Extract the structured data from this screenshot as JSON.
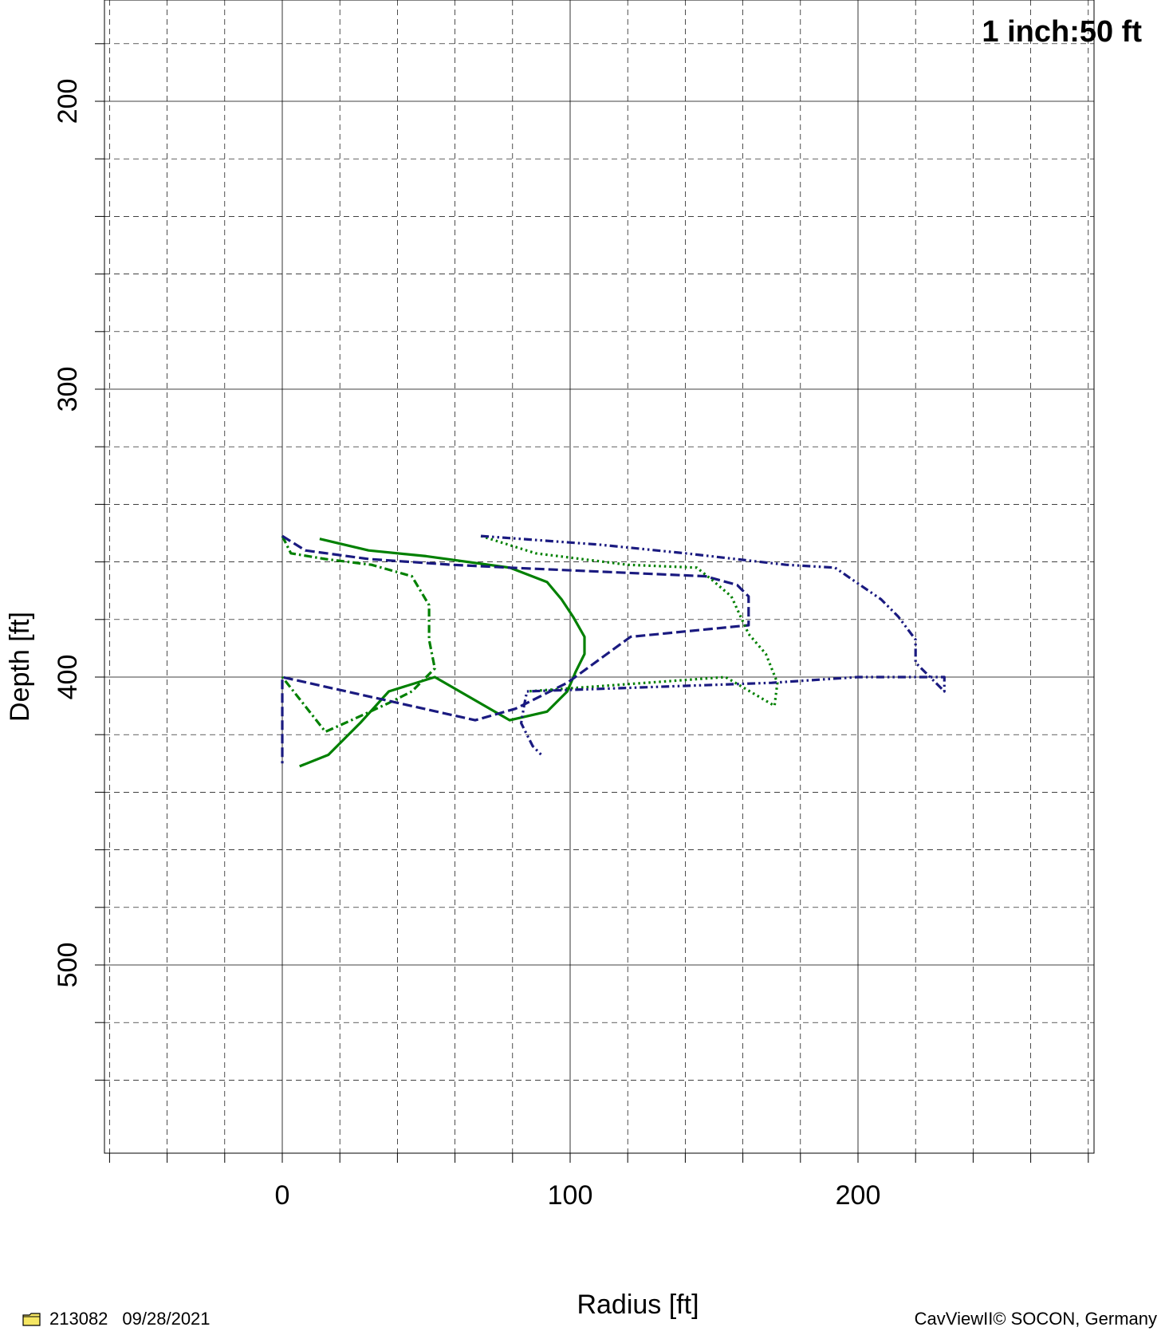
{
  "scale_label": "1 inch:50 ft",
  "footer": {
    "id": "213082",
    "date": "09/28/2021",
    "credit": "CavViewII© SOCON, Germany",
    "folder_icon": "folder-icon"
  },
  "chart_data": {
    "type": "line",
    "xlabel": "Radius [ft]",
    "ylabel": "Depth [ft]",
    "xlim": [
      -60,
      280
    ],
    "ylim": [
      180,
      540
    ],
    "y_inverted": true,
    "x_ticks": [
      0,
      100,
      200
    ],
    "y_ticks": [
      200,
      300,
      400,
      500
    ],
    "grid": true,
    "series": [
      {
        "style": "solid",
        "color": "#008000",
        "points": [
          [
            13,
            352
          ],
          [
            30,
            356
          ],
          [
            50,
            358
          ],
          [
            79,
            362
          ],
          [
            92,
            367
          ],
          [
            97,
            373
          ],
          [
            101,
            379
          ],
          [
            105,
            386
          ],
          [
            105,
            392
          ],
          [
            102,
            398
          ],
          [
            99,
            405
          ],
          [
            92,
            412
          ],
          [
            79,
            415
          ],
          [
            53,
            400
          ],
          [
            37,
            405
          ],
          [
            27,
            416
          ],
          [
            16,
            427
          ],
          [
            6,
            431
          ]
        ]
      },
      {
        "style": "dashdot",
        "color": "#008000",
        "points": [
          [
            0,
            351
          ],
          [
            3,
            357
          ],
          [
            15,
            359
          ],
          [
            31,
            361
          ],
          [
            45,
            365
          ],
          [
            51,
            375
          ],
          [
            51,
            387
          ],
          [
            53,
            397
          ],
          [
            45,
            405
          ],
          [
            37,
            409
          ],
          [
            24,
            415
          ],
          [
            15,
            419
          ],
          [
            0,
            400
          ]
        ]
      },
      {
        "style": "dashed",
        "color": "#1a1a80",
        "points": [
          [
            0,
            351
          ],
          [
            8,
            356
          ],
          [
            30,
            359
          ],
          [
            59,
            361
          ],
          [
            79,
            362
          ],
          [
            147,
            365
          ],
          [
            158,
            368
          ],
          [
            162,
            372
          ],
          [
            162,
            382
          ],
          [
            121,
            386
          ],
          [
            99,
            402
          ],
          [
            99,
            402
          ],
          [
            81,
            411
          ],
          [
            67,
            415
          ],
          [
            0,
            400
          ],
          [
            0,
            430
          ]
        ]
      },
      {
        "style": "dotted",
        "color": "#008000",
        "points": [
          [
            69,
            351
          ],
          [
            88,
            357
          ],
          [
            120,
            361
          ],
          [
            144,
            362
          ],
          [
            149,
            366
          ],
          [
            156,
            372
          ],
          [
            162,
            385
          ],
          [
            168,
            392
          ],
          [
            172,
            402
          ],
          [
            171,
            410
          ],
          [
            154,
            400
          ],
          [
            85,
            405
          ]
        ]
      },
      {
        "style": "dashdotdot",
        "color": "#1a1a80",
        "points": [
          [
            69,
            351
          ],
          [
            110,
            354
          ],
          [
            140,
            357
          ],
          [
            175,
            361
          ],
          [
            192,
            362
          ],
          [
            208,
            373
          ],
          [
            214,
            379
          ],
          [
            220,
            387
          ],
          [
            220,
            395
          ],
          [
            230,
            405
          ],
          [
            230,
            400
          ],
          [
            200,
            400
          ],
          [
            170,
            402
          ],
          [
            85,
            405
          ],
          [
            84,
            410
          ],
          [
            83,
            416
          ],
          [
            85,
            420
          ],
          [
            87,
            424
          ],
          [
            90,
            427
          ]
        ]
      }
    ]
  }
}
